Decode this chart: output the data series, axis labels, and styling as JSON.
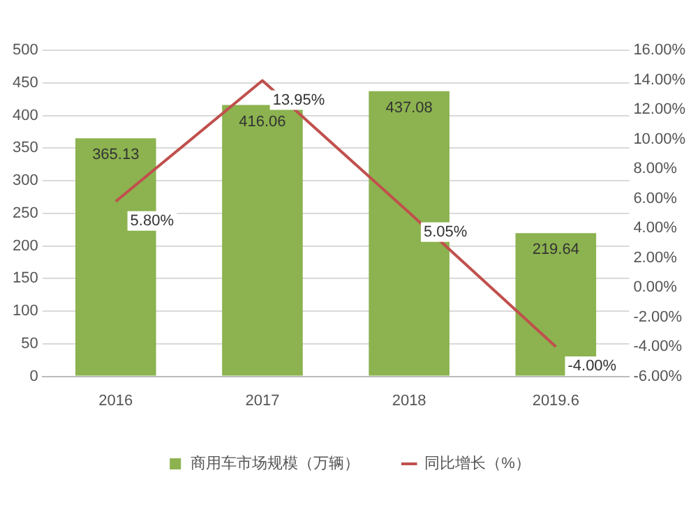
{
  "chart_data": {
    "type": "bar",
    "categories": [
      "2016",
      "2017",
      "2018",
      "2019.6"
    ],
    "series": [
      {
        "name": "商用车市场规模（万辆）",
        "color": "#8cb34f",
        "values": [
          365.13,
          416.06,
          437.08,
          219.64
        ],
        "value_labels": [
          "365.13",
          "416.06",
          "437.08",
          "219.64"
        ]
      },
      {
        "name": "同比增长（%）",
        "type": "line",
        "axis": "y2",
        "color": "#c0504d",
        "values": [
          5.8,
          13.95,
          5.05,
          -4.0
        ],
        "value_labels": [
          "5.80%",
          "13.95%",
          "5.05%",
          "-4.00%"
        ]
      }
    ],
    "ylim": [
      0,
      500
    ],
    "yticks": [
      0,
      50,
      100,
      150,
      200,
      250,
      300,
      350,
      400,
      450,
      500
    ],
    "y2lim": [
      -6,
      16
    ],
    "y2ticks": [
      {
        "value": -6,
        "label": "-6.00%"
      },
      {
        "value": -4,
        "label": "-4.00%"
      },
      {
        "value": -2,
        "label": "-2.00%"
      },
      {
        "value": 0,
        "label": "0.00%"
      },
      {
        "value": 2,
        "label": "2.00%"
      },
      {
        "value": 4,
        "label": "4.00%"
      },
      {
        "value": 6,
        "label": "6.00%"
      },
      {
        "value": 8,
        "label": "8.00%"
      },
      {
        "value": 10,
        "label": "10.00%"
      },
      {
        "value": 12,
        "label": "12.00%"
      },
      {
        "value": 14,
        "label": "14.00%"
      },
      {
        "value": 16,
        "label": "16.00%"
      }
    ],
    "grid": "y",
    "legend": "bottom",
    "marker": "none",
    "line_style": "solid"
  }
}
